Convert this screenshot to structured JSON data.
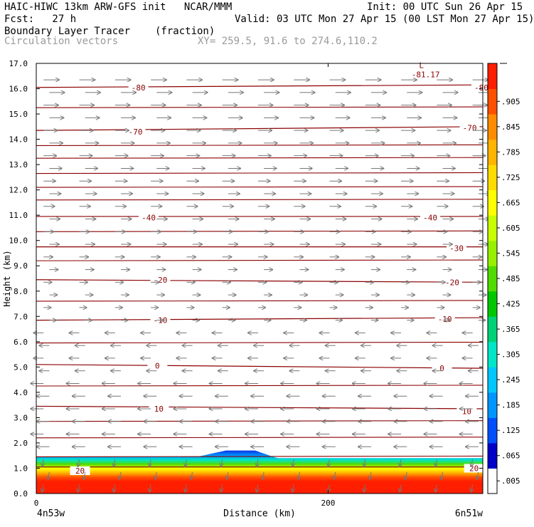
{
  "header": {
    "line1_left": "HAIC-HIWC 13km ARW-GFS init   NCAR/MMM",
    "line1_right": "Init: 00 UTC Sun 26 Apr 15",
    "line2_left": "Fcst:   27 h",
    "line2_right": "Valid: 03 UTC Mon 27 Apr 15 (00 LST Mon 27 Apr 15)",
    "line3_left": "Boundary Layer Tracer",
    "line3_units": "(fraction)",
    "line4_left": "Circulation vectors",
    "line4_xy": "XY= 259.5, 91.6 to 274.6,110.2"
  },
  "chart_data": {
    "type": "cross-section",
    "ylabel": "Height (km)",
    "xlabel": "Distance (km)",
    "ylim": [
      0,
      17
    ],
    "xlim": [
      0,
      306
    ],
    "y_ticks": [
      "0.0",
      "1.0",
      "2.0",
      "3.0",
      "4.0",
      "5.0",
      "6.0",
      "7.0",
      "8.0",
      "9.0",
      "10.0",
      "11.0",
      "12.0",
      "13.0",
      "14.0",
      "15.0",
      "16.0",
      "17.0"
    ],
    "x_ticks": [
      {
        "value": 0,
        "label": "0"
      },
      {
        "value": 200,
        "label": "200"
      }
    ],
    "x_end_labels": {
      "left": "4n53w",
      "right": "6n51w"
    },
    "colorbar": {
      "labels": [
        ".005",
        ".065",
        ".125",
        ".185",
        ".245",
        ".305",
        ".365",
        ".425",
        ".485",
        ".545",
        ".605",
        ".665",
        ".725",
        ".785",
        ".845",
        ".905"
      ],
      "colors": [
        "#ffffff",
        "#0000c8",
        "#0050ff",
        "#0096ff",
        "#00c8ff",
        "#00e6c8",
        "#00d278",
        "#00c800",
        "#50dc00",
        "#96f000",
        "#c8ff00",
        "#ffff00",
        "#ffdc00",
        "#ffb400",
        "#ff8c00",
        "#ff5000",
        "#ff1e00"
      ]
    },
    "temperature_contours": [
      {
        "label": "20",
        "y_left": 1.05,
        "y_right": 1.05,
        "label_pos": [
          [
            30,
            0.9
          ],
          [
            300,
            1.0
          ]
        ]
      },
      {
        "label": "10",
        "y_left": 3.45,
        "y_right": 3.35,
        "label_pos": [
          [
            84,
            3.35
          ],
          [
            295,
            3.25
          ]
        ]
      },
      {
        "label": "0",
        "y_left": 5.1,
        "y_right": 4.95,
        "label_pos": [
          [
            83,
            5.05
          ],
          [
            278,
            4.95
          ]
        ]
      },
      {
        "label": "-10",
        "y_left": 6.85,
        "y_right": 6.95,
        "label_pos": [
          [
            85,
            6.85
          ],
          [
            280,
            6.9
          ]
        ]
      },
      {
        "label": "-20",
        "y_left": 8.45,
        "y_right": 8.35,
        "label_pos": [
          [
            85,
            8.45
          ],
          [
            285,
            8.35
          ]
        ]
      },
      {
        "label": "-30",
        "y_left": 9.75,
        "y_right": 9.75,
        "label_pos": [
          [
            288,
            9.7
          ]
        ]
      },
      {
        "label": "-40",
        "y_left": 10.95,
        "y_right": 10.95,
        "label_pos": [
          [
            77,
            10.9
          ],
          [
            270,
            10.9
          ]
        ]
      },
      {
        "label": "-70",
        "y_left": 14.35,
        "y_right": 14.5,
        "label_pos": [
          [
            68,
            14.3
          ],
          [
            297,
            14.45
          ]
        ]
      },
      {
        "label": "-80",
        "y_left": 16.05,
        "y_right": 16.15,
        "label_pos": [
          [
            70,
            16.05
          ],
          [
            305,
            16.05
          ]
        ]
      }
    ],
    "extra_contours_y": [
      1.45,
      2.2,
      2.85,
      4.25,
      5.95,
      7.6,
      9.2,
      10.35,
      11.6,
      12.1,
      12.65,
      13.25,
      13.75,
      15.25
    ],
    "min_marker": {
      "label": "L",
      "value": "-81.17",
      "x": 262,
      "y": 16.7
    }
  }
}
